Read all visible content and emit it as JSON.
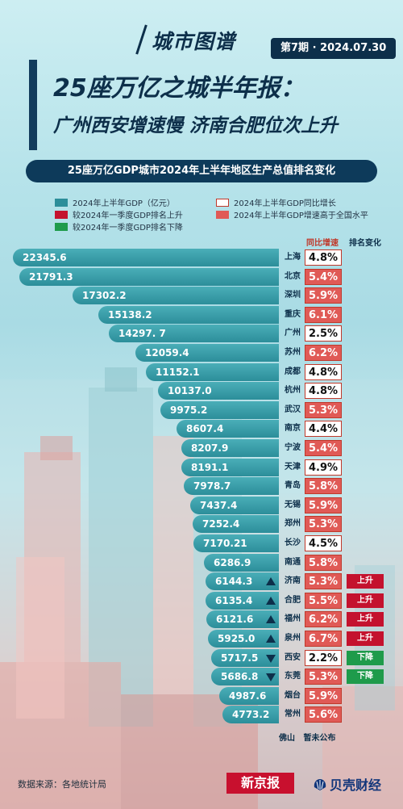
{
  "brand": "城市图谱",
  "issue": "第7期 · 2024.07.30",
  "title_line1": "25座万亿之城半年报：",
  "title_line2": "广州西安增速慢 济南合肥位次上升",
  "subtitle": "25座万亿GDP城市2024年上半年地区生产总值排名变化",
  "legend": {
    "gdp": "2024年上半年GDP（亿元）",
    "growth": "2024年上半年GDP同比增长",
    "rank_up": "较2024年一季度GDP排名上升",
    "above_national": "2024年上半年GDP增速高于全国水平",
    "rank_down": "较2024年一季度GDP排名下降"
  },
  "col_growth": "同比增速",
  "col_rank": "排名变化",
  "footnote_city": "佛山",
  "footnote_text": "暂未公布",
  "source": "数据来源：各地统计局",
  "logo_newspaper": "新京报",
  "logo_beike": "贝壳财经",
  "colors": {
    "bar": "#2c8e9a",
    "growth_high_fill": "#e05a56",
    "rank_up": "#c4122e",
    "rank_down": "#1e9b4b",
    "navy": "#0d2f4a"
  },
  "chart_data": {
    "type": "bar",
    "orientation": "horizontal",
    "categories": [
      "上海",
      "北京",
      "深圳",
      "重庆",
      "广州",
      "苏州",
      "成都",
      "杭州",
      "武汉",
      "南京",
      "宁波",
      "天津",
      "青岛",
      "无锡",
      "郑州",
      "长沙",
      "南通",
      "济南",
      "合肥",
      "福州",
      "泉州",
      "西安",
      "东莞",
      "烟台",
      "常州"
    ],
    "values": [
      22345.6,
      21791.3,
      17302.2,
      15138.2,
      14297.7,
      12059.4,
      11152.1,
      10137.0,
      9975.2,
      8607.4,
      8207.9,
      8191.1,
      7978.7,
      7437.4,
      7252.4,
      7170.21,
      6286.9,
      6144.3,
      6135.4,
      6121.6,
      5925.0,
      5717.5,
      5686.8,
      4987.6,
      4773.2
    ],
    "value_labels": [
      "22345.6",
      "21791.3",
      "17302.2",
      "15138.2",
      "14297. 7",
      "12059.4",
      "11152.1",
      "10137.0",
      "9975.2",
      "8607.4",
      "8207.9",
      "8191.1",
      "7978.7",
      "7437.4",
      "7252.4",
      "7170.21",
      "6286.9",
      "6144.3",
      "6135.4",
      "6121.6",
      "5925.0",
      "5717.5",
      "5686.8",
      "4987.6",
      "4773.2"
    ],
    "growth_labels": [
      "4.8%",
      "5.4%",
      "5.9%",
      "6.1%",
      "2.5%",
      "6.2%",
      "4.8%",
      "4.8%",
      "5.3%",
      "4.4%",
      "5.4%",
      "4.9%",
      "5.8%",
      "5.9%",
      "5.3%",
      "4.5%",
      "5.8%",
      "5.3%",
      "5.5%",
      "6.2%",
      "6.7%",
      "2.2%",
      "5.3%",
      "5.9%",
      "5.6%"
    ],
    "growth_above_national": [
      false,
      true,
      true,
      true,
      false,
      true,
      false,
      false,
      true,
      false,
      true,
      false,
      true,
      true,
      true,
      false,
      true,
      true,
      true,
      true,
      true,
      false,
      true,
      true,
      true
    ],
    "rank_change": [
      "",
      "",
      "",
      "",
      "",
      "",
      "",
      "",
      "",
      "",
      "",
      "",
      "",
      "",
      "",
      "",
      "",
      "上升",
      "上升",
      "上升",
      "上升",
      "下降",
      "下降",
      "",
      ""
    ],
    "rank_arrow": [
      "",
      "",
      "",
      "",
      "",
      "",
      "",
      "",
      "",
      "",
      "",
      "",
      "",
      "",
      "",
      "",
      "",
      "up",
      "up",
      "up",
      "up",
      "down",
      "down",
      "",
      ""
    ]
  }
}
